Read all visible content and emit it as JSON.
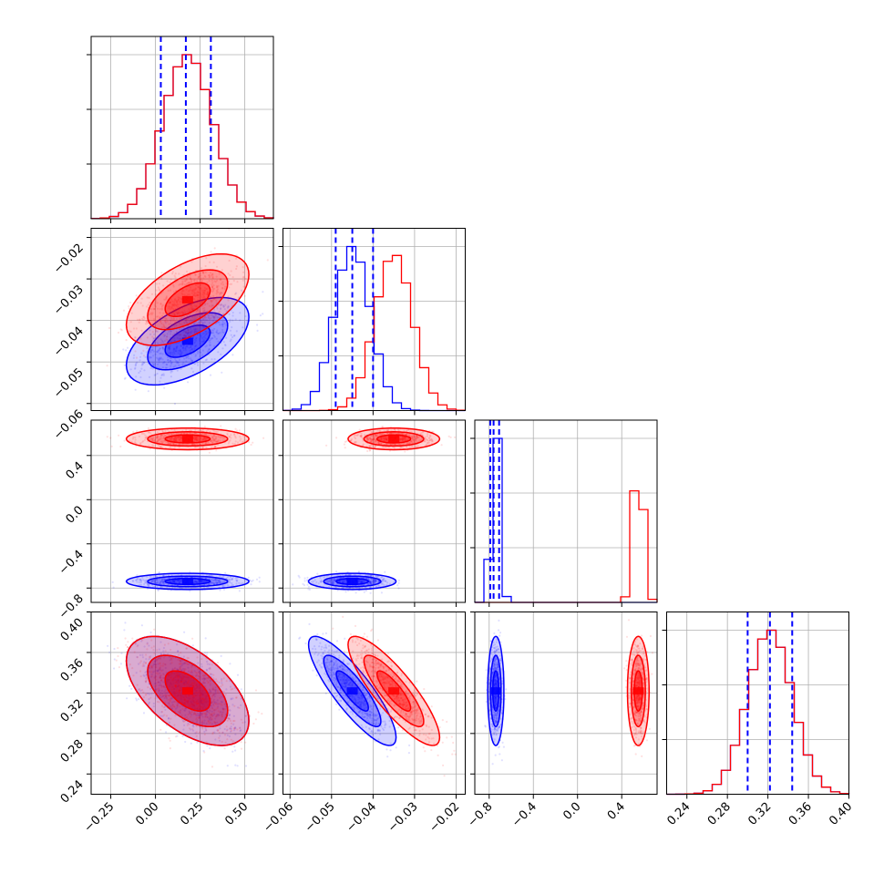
{
  "colors": {
    "blue": "#0000ff",
    "red": "#ff0000",
    "grid": "#b0b0b0",
    "axes": "#000000"
  },
  "chart_data": {
    "type": "corner",
    "grid": true,
    "series": [
      {
        "color": "blue",
        "params": [
          {
            "mean": 0.18,
            "sd": 0.14,
            "quantiles": [
              0.03,
              0.17,
              0.31
            ]
          },
          {
            "mean": -0.045,
            "sd": 0.0043,
            "quantiles": [
              -0.049,
              -0.045,
              -0.04
            ]
          },
          {
            "mean": -0.74,
            "sd": 0.03,
            "quantiles": [
              -0.79,
              -0.76,
              -0.71
            ]
          },
          {
            "mean": 0.322,
            "sd": 0.022,
            "quantiles": [
              0.3,
              0.322,
              0.344
            ]
          }
        ],
        "corr": [
          [
            1,
            0.55,
            0.0,
            -0.55
          ],
          [
            0.55,
            1,
            0.0,
            -0.85
          ],
          [
            0.0,
            0.0,
            1,
            0.0
          ],
          [
            -0.55,
            -0.85,
            0.0,
            1
          ]
        ]
      },
      {
        "color": "red",
        "params": [
          {
            "mean": 0.18,
            "sd": 0.14
          },
          {
            "mean": -0.035,
            "sd": 0.0045
          },
          {
            "mean": 0.55,
            "sd": 0.04
          },
          {
            "mean": 0.322,
            "sd": 0.022
          }
        ],
        "corr": [
          [
            1,
            0.55,
            0.0,
            -0.55
          ],
          [
            0.55,
            1,
            0.0,
            -0.85
          ],
          [
            0.0,
            0.0,
            1,
            0.0
          ],
          [
            -0.55,
            -0.85,
            0.0,
            1
          ]
        ]
      }
    ],
    "axes": [
      {
        "range": [
          -0.36,
          0.66
        ],
        "ticks": [
          -0.25,
          0.0,
          0.25,
          0.5
        ],
        "tick_labels": [
          "−0.25",
          "0.00",
          "0.25",
          "0.50"
        ]
      },
      {
        "range": [
          -0.0617,
          -0.0178
        ],
        "ticks": [
          -0.06,
          -0.05,
          -0.04,
          -0.03,
          -0.02
        ],
        "tick_labels": [
          "−0.06",
          "−0.05",
          "−0.04",
          "−0.03",
          "−0.02"
        ]
      },
      {
        "range": [
          -0.93,
          0.72
        ],
        "ticks": [
          -0.8,
          -0.4,
          0.0,
          0.4
        ],
        "tick_labels": [
          "−0.8",
          "−0.4",
          "0.0",
          "0.4"
        ],
        "x_ticks": [
          -0.8,
          -0.4,
          0.0,
          0.4
        ],
        "x_tick_labels": [
          "−0.8",
          "−0.4",
          "0.0",
          "0.4"
        ]
      },
      {
        "range": [
          0.22,
          0.4
        ],
        "ticks": [
          0.24,
          0.28,
          0.32,
          0.36,
          0.4
        ],
        "tick_labels": [
          "0.24",
          "0.28",
          "0.32",
          "0.36",
          "0.40"
        ]
      }
    ],
    "xlabel": "",
    "ylabel": "",
    "title": ""
  }
}
